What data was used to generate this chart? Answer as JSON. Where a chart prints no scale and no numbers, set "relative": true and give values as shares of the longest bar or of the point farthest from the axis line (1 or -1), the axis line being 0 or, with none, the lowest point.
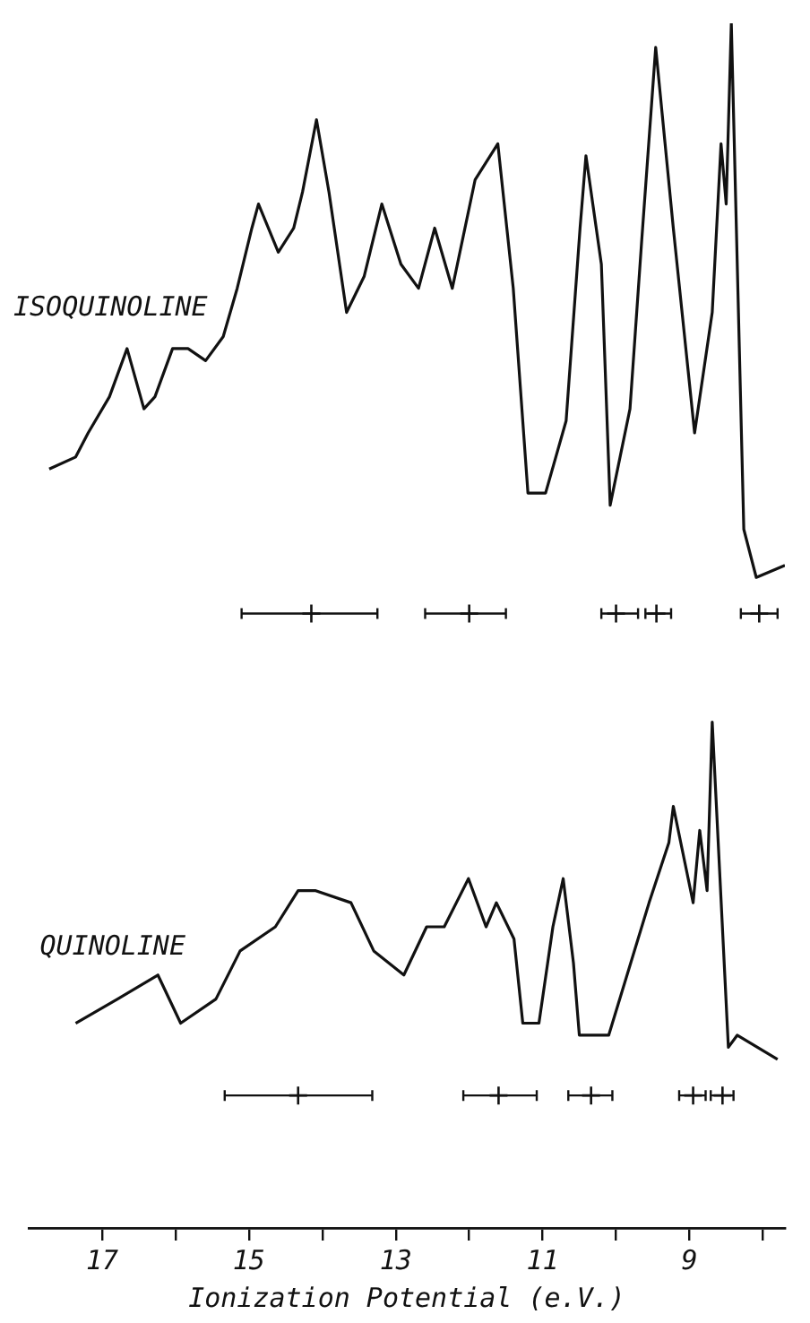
{
  "chart_data": {
    "type": "line",
    "xlabel": "Ionization Potential (e.V.)",
    "relative": true,
    "xlim": [
      18,
      7.7
    ],
    "xticks": [
      17,
      {
        "value": 16,
        "label": null
      },
      15,
      {
        "value": 14,
        "label": null
      },
      13,
      {
        "value": 12,
        "label": null
      },
      11,
      {
        "value": 10,
        "label": null
      },
      9,
      {
        "value": 8,
        "label": null
      }
    ],
    "grid": false,
    "legend": false,
    "series": [
      {
        "type": "line",
        "name": "ISOQUINOLINE",
        "color": "#111111",
        "marker": "none",
        "line_style": "solid",
        "x": [
          17.72,
          17.36,
          17.19,
          16.9,
          16.66,
          16.43,
          16.28,
          16.04,
          15.83,
          15.59,
          15.35,
          15.16,
          14.96,
          14.87,
          14.6,
          14.39,
          14.27,
          14.08,
          13.91,
          13.67,
          13.43,
          13.19,
          12.93,
          12.69,
          12.47,
          12.23,
          11.92,
          11.61,
          11.4,
          11.2,
          10.96,
          10.68,
          10.49,
          10.41,
          10.2,
          10.08,
          9.81,
          9.65,
          9.46,
          9.22,
          8.93,
          8.69,
          8.57,
          8.5,
          8.43,
          8.26,
          8.09,
          7.7
        ],
        "values": [
          0.63,
          0.64,
          0.66,
          0.69,
          0.73,
          0.68,
          0.69,
          0.73,
          0.73,
          0.72,
          0.74,
          0.78,
          0.83,
          0.85,
          0.81,
          0.83,
          0.86,
          0.92,
          0.86,
          0.76,
          0.79,
          0.85,
          0.8,
          0.78,
          0.83,
          0.78,
          0.87,
          0.9,
          0.78,
          0.61,
          0.61,
          0.67,
          0.83,
          0.89,
          0.8,
          0.6,
          0.68,
          0.82,
          0.98,
          0.83,
          0.66,
          0.76,
          0.9,
          0.85,
          1.0,
          0.58,
          0.54,
          0.55
        ]
      },
      {
        "type": "scatter",
        "color": "#111111",
        "marker": "cross",
        "x": [
          14.15,
          12.0,
          10.0,
          9.45,
          8.05
        ],
        "values": [
          0.51,
          0.51,
          0.51,
          0.51,
          0.51
        ],
        "xerrors": [
          [
            13.25,
            15.1
          ],
          [
            11.5,
            12.6
          ],
          [
            9.7,
            10.2
          ],
          [
            9.25,
            9.6
          ],
          [
            7.8,
            8.3
          ]
        ]
      },
      {
        "type": "line",
        "name": "QUINOLINE",
        "color": "#111111",
        "marker": "none",
        "line_style": "solid",
        "x": [
          17.36,
          16.79,
          16.24,
          15.93,
          15.45,
          15.12,
          14.64,
          14.33,
          14.09,
          13.61,
          13.3,
          12.89,
          12.58,
          12.34,
          12.01,
          11.77,
          11.63,
          11.39,
          11.27,
          11.05,
          10.86,
          10.72,
          10.58,
          10.5,
          10.1,
          9.55,
          9.28,
          9.22,
          8.95,
          8.86,
          8.76,
          8.69,
          8.47,
          8.35,
          7.8
        ],
        "values": [
          0.17,
          0.19,
          0.21,
          0.17,
          0.19,
          0.23,
          0.25,
          0.28,
          0.28,
          0.27,
          0.23,
          0.21,
          0.25,
          0.25,
          0.29,
          0.25,
          0.27,
          0.24,
          0.17,
          0.17,
          0.25,
          0.29,
          0.22,
          0.16,
          0.16,
          0.27,
          0.32,
          0.35,
          0.27,
          0.33,
          0.28,
          0.42,
          0.15,
          0.16,
          0.14
        ]
      },
      {
        "type": "scatter",
        "color": "#111111",
        "marker": "cross",
        "x": [
          14.33,
          11.6,
          10.34,
          8.95,
          8.55
        ],
        "values": [
          0.11,
          0.11,
          0.11,
          0.11,
          0.11
        ],
        "xerrors": [
          [
            13.32,
            15.33
          ],
          [
            11.08,
            12.08
          ],
          [
            10.05,
            10.65
          ],
          [
            8.78,
            9.14
          ],
          [
            8.4,
            8.71
          ]
        ]
      }
    ]
  }
}
